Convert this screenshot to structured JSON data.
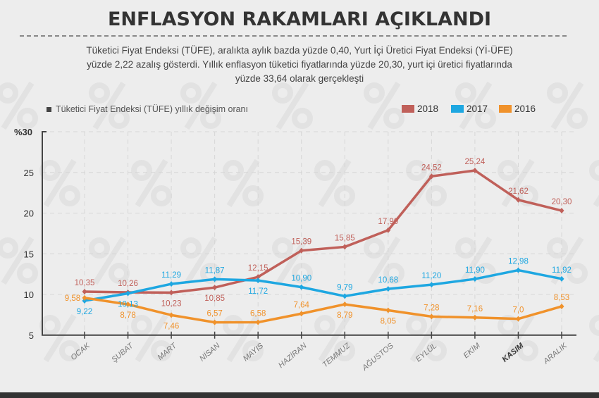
{
  "title": "ENFLASYON RAKAMLARI AÇIKLANDI",
  "subtitle": "Tüketici Fiyat Endeksi (TÜFE), aralıkta aylık bazda yüzde 0,40, Yurt İçi Üretici Fiyat Endeksi (Yİ-ÜFE) yüzde 2,22 azalış gösterdi. Yıllık enflasyon tüketici fiyatlarında yüzde 20,30, yurt içi üretici fiyatlarında yüzde 33,64 olarak gerçekleşti",
  "chart_data": {
    "type": "line",
    "title": "Tüketici Fiyat Endeksi (TÜFE) yıllık değişim oranı",
    "categories": [
      "OCAK",
      "ŞUBAT",
      "MART",
      "NİSAN",
      "MAYIS",
      "HAZİRAN",
      "TEMMUZ",
      "AĞUSTOS",
      "EYLÜL",
      "EKİM",
      "KASIM",
      "ARALIK"
    ],
    "highlighted_category": "KASIM",
    "yticks": [
      "5",
      "10",
      "15",
      "20",
      "25",
      "%30"
    ],
    "ylim": [
      5,
      30
    ],
    "grid": true,
    "legend_position": "top-right",
    "series": [
      {
        "name": "2018",
        "color": "#c0605a",
        "values": [
          10.35,
          10.26,
          10.23,
          10.85,
          12.15,
          15.39,
          15.85,
          17.9,
          24.52,
          25.24,
          21.62,
          20.3
        ],
        "labels": [
          "10,35",
          "10,26",
          "10,23",
          "10,85",
          "12,15",
          "15,39",
          "15,85",
          "17,90",
          "24,52",
          "25,24",
          "21,62",
          "20,30"
        ]
      },
      {
        "name": "2017",
        "color": "#1ea7e1",
        "values": [
          9.22,
          10.13,
          11.29,
          11.87,
          11.72,
          10.9,
          9.79,
          10.68,
          11.2,
          11.9,
          12.98,
          11.92
        ],
        "labels": [
          "9,22",
          "10,13",
          "11,29",
          "11,87",
          "11,72",
          "10,90",
          "9,79",
          "10,68",
          "11,20",
          "11,90",
          "12,98",
          "11,92"
        ]
      },
      {
        "name": "2016",
        "color": "#f0922b",
        "values": [
          9.58,
          8.78,
          7.46,
          6.57,
          6.58,
          7.64,
          8.79,
          8.05,
          7.28,
          7.16,
          7.0,
          8.53
        ],
        "labels": [
          "9,58",
          "8,78",
          "7,46",
          "6,57",
          "6,58",
          "7,64",
          "8,79",
          "8,05",
          "7,28",
          "7,16",
          "7,0",
          "8,53"
        ]
      }
    ]
  }
}
